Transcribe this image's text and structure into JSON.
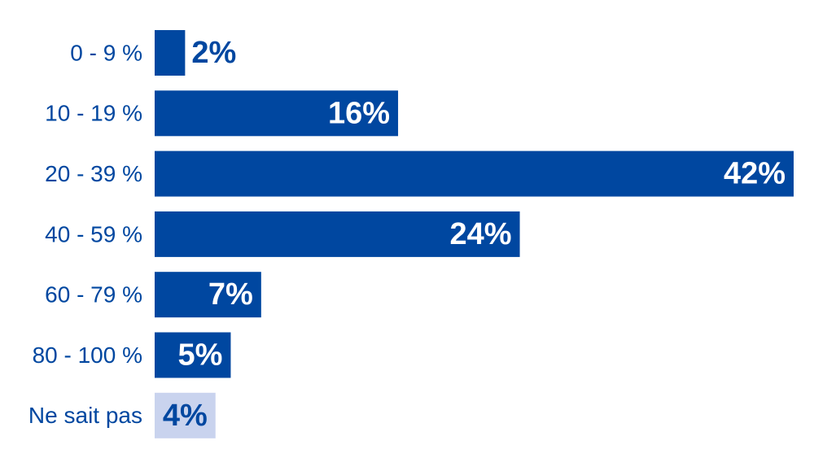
{
  "chart_data": {
    "type": "bar",
    "orientation": "horizontal",
    "categories": [
      "0 - 9 %",
      "10 - 19 %",
      "20 - 39 %",
      "40 - 59 %",
      "60 - 79 %",
      "80 - 100 %",
      "Ne sait pas"
    ],
    "values": [
      2,
      16,
      42,
      24,
      7,
      5,
      4
    ],
    "value_labels": [
      "2%",
      "16%",
      "42%",
      "24%",
      "7%",
      "5%",
      "4%"
    ],
    "colors": [
      "#0047a0",
      "#0047a0",
      "#0047a0",
      "#0047a0",
      "#0047a0",
      "#0047a0",
      "#c9d3ee"
    ]
  }
}
